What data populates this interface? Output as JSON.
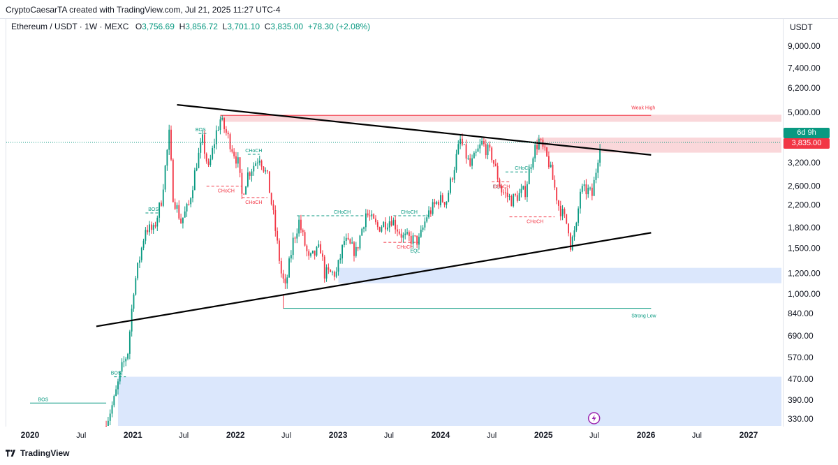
{
  "credit": "CryptoCaesarTA created with TradingView.com, Jul 21, 2025 11:27 UTC-4",
  "legend": {
    "symbol": "Ethereum / USDT · 1W · MEXC",
    "o_label": "O",
    "o": "3,756.69",
    "h_label": "H",
    "h": "3,856.72",
    "l_label": "L",
    "l": "3,701.10",
    "c_label": "C",
    "c": "3,835.00",
    "change": "+78.30 (+2.08%)"
  },
  "currency": "USDT",
  "timer": "6d 9h",
  "current_price": "3,835.00",
  "footer_brand": "TradingView",
  "colors": {
    "up": "#089981",
    "down": "#f23645",
    "supply": "#f9d0d3",
    "demand": "#d5e3fb"
  },
  "chart_data": {
    "type": "candlestick",
    "scale": "log",
    "ylim": [
      300,
      11000
    ],
    "y_ticks": [
      {
        "value": 9000,
        "label": "9,000.00"
      },
      {
        "value": 7400,
        "label": "7,400.00"
      },
      {
        "value": 6200,
        "label": "6,200.00"
      },
      {
        "value": 5000,
        "label": "5,000.00"
      },
      {
        "value": 3200,
        "label": "3,200.00"
      },
      {
        "value": 2600,
        "label": "2,600.00"
      },
      {
        "value": 2200,
        "label": "2,200.00"
      },
      {
        "value": 1800,
        "label": "1,800.00"
      },
      {
        "value": 1500,
        "label": "1,500.00"
      },
      {
        "value": 1200,
        "label": "1,200.00"
      },
      {
        "value": 1000,
        "label": "1,000.00"
      },
      {
        "value": 840,
        "label": "840.00"
      },
      {
        "value": 690,
        "label": "690.00"
      },
      {
        "value": 570,
        "label": "570.00"
      },
      {
        "value": 470,
        "label": "470.00"
      },
      {
        "value": 390,
        "label": "390.00"
      },
      {
        "value": 330,
        "label": "330.00"
      }
    ],
    "x_ticks": [
      {
        "date": "2020-01-01",
        "label": "2020",
        "bold": true
      },
      {
        "date": "2020-07-01",
        "label": "Jul",
        "bold": false
      },
      {
        "date": "2021-01-01",
        "label": "2021",
        "bold": true
      },
      {
        "date": "2021-07-01",
        "label": "Jul",
        "bold": false
      },
      {
        "date": "2022-01-01",
        "label": "2022",
        "bold": true
      },
      {
        "date": "2022-07-01",
        "label": "Jul",
        "bold": false
      },
      {
        "date": "2023-01-01",
        "label": "2023",
        "bold": true
      },
      {
        "date": "2023-07-01",
        "label": "Jul",
        "bold": false
      },
      {
        "date": "2024-01-01",
        "label": "2024",
        "bold": true
      },
      {
        "date": "2024-07-01",
        "label": "Jul",
        "bold": false
      },
      {
        "date": "2025-01-01",
        "label": "2025",
        "bold": true
      },
      {
        "date": "2025-07-01",
        "label": "Jul",
        "bold": false
      },
      {
        "date": "2026-01-01",
        "label": "2026",
        "bold": true
      },
      {
        "date": "2026-07-01",
        "label": "Jul",
        "bold": false
      },
      {
        "date": "2027-01-01",
        "label": "2027",
        "bold": true
      }
    ],
    "price_path": [
      [
        "2020-09-28",
        320
      ],
      [
        "2020-10-26",
        390
      ],
      [
        "2020-11-23",
        520
      ],
      [
        "2020-12-14",
        600
      ],
      [
        "2021-01-04",
        1050
      ],
      [
        "2021-02-15",
        1800
      ],
      [
        "2021-03-15",
        1750
      ],
      [
        "2021-04-12",
        2300
      ],
      [
        "2021-05-10",
        4100
      ],
      [
        "2021-05-24",
        2400
      ],
      [
        "2021-06-21",
        1900
      ],
      [
        "2021-07-19",
        2200
      ],
      [
        "2021-08-16",
        3200
      ],
      [
        "2021-09-06",
        3900
      ],
      [
        "2021-09-27",
        3000
      ],
      [
        "2021-10-25",
        4200
      ],
      [
        "2021-11-08",
        4700
      ],
      [
        "2021-12-06",
        4000
      ],
      [
        "2022-01-10",
        3200
      ],
      [
        "2022-01-24",
        2400
      ],
      [
        "2022-02-14",
        2900
      ],
      [
        "2022-03-28",
        3400
      ],
      [
        "2022-04-25",
        2800
      ],
      [
        "2022-05-16",
        2000
      ],
      [
        "2022-06-13",
        1200
      ],
      [
        "2022-06-27",
        1050
      ],
      [
        "2022-07-25",
        1600
      ],
      [
        "2022-08-15",
        1900
      ],
      [
        "2022-09-19",
        1350
      ],
      [
        "2022-10-31",
        1500
      ],
      [
        "2022-11-14",
        1200
      ],
      [
        "2022-12-26",
        1200
      ],
      [
        "2023-01-23",
        1600
      ],
      [
        "2023-03-06",
        1450
      ],
      [
        "2023-04-10",
        2050
      ],
      [
        "2023-05-22",
        1800
      ],
      [
        "2023-07-10",
        1950
      ],
      [
        "2023-08-21",
        1650
      ],
      [
        "2023-10-16",
        1600
      ],
      [
        "2023-11-13",
        2000
      ],
      [
        "2023-12-25",
        2300
      ],
      [
        "2024-01-22",
        2300
      ],
      [
        "2024-03-11",
        3900
      ],
      [
        "2024-04-15",
        3100
      ],
      [
        "2024-05-27",
        3800
      ],
      [
        "2024-07-01",
        3400
      ],
      [
        "2024-08-05",
        2500
      ],
      [
        "2024-09-09",
        2300
      ],
      [
        "2024-10-28",
        2500
      ],
      [
        "2024-11-25",
        3500
      ],
      [
        "2024-12-16",
        3900
      ],
      [
        "2025-01-20",
        3200
      ],
      [
        "2025-02-24",
        2200
      ],
      [
        "2025-03-31",
        1800
      ],
      [
        "2025-04-07",
        1550
      ],
      [
        "2025-04-28",
        1800
      ],
      [
        "2025-05-12",
        2500
      ],
      [
        "2025-06-09",
        2500
      ],
      [
        "2025-06-23",
        2400
      ],
      [
        "2025-07-07",
        3000
      ],
      [
        "2025-07-21",
        3835
      ]
    ],
    "zones": [
      {
        "name": "supply-zone-upper",
        "x0": "2021-11-08",
        "x1": "2027-06-01",
        "y0": 4600,
        "y1": 4900,
        "kind": "supply"
      },
      {
        "name": "supply-zone-lower",
        "x0": "2024-12-09",
        "x1": "2027-06-01",
        "y0": 3500,
        "y1": 4000,
        "kind": "supply"
      },
      {
        "name": "demand-zone-upper",
        "x0": "2023-01-02",
        "x1": "2027-06-01",
        "y0": 1100,
        "y1": 1260,
        "kind": "demand"
      },
      {
        "name": "demand-zone-lower",
        "x0": "2020-11-09",
        "x1": "2027-06-01",
        "y0": 300,
        "y1": 480,
        "kind": "demand"
      }
    ],
    "trendlines": [
      {
        "name": "descending-trendline",
        "x0": "2021-06-07",
        "y0": 5350,
        "x1": "2026-01-19",
        "y1": 3430
      },
      {
        "name": "ascending-trendline",
        "x0": "2020-08-24",
        "y0": 750,
        "x1": "2026-01-19",
        "y1": 1720
      }
    ],
    "levels": [
      {
        "name": "weak-high-line",
        "x0": "2021-11-08",
        "x1": "2026-01-19",
        "y": 4870,
        "color": "#f23645",
        "label": "Weak High",
        "label_date": "2025-11-10",
        "label_dy": -9
      },
      {
        "name": "strong-low-line",
        "x0": "2022-06-20",
        "x1": "2026-01-19",
        "y": 880,
        "color": "#089981",
        "label": "Strong Low",
        "label_date": "2025-11-10",
        "label_dy": 13
      },
      {
        "name": "strong-low-stem",
        "x0": "2022-06-20",
        "x1": "2022-06-20",
        "y": 880,
        "y_top": 1000,
        "color": "#f23645"
      }
    ],
    "structure_labels": [
      {
        "text": "BOS",
        "date": "2020-02-17",
        "y": 380,
        "color": "#089981",
        "line_x0": "2020-01-01",
        "line_x1": "2020-09-28",
        "dashed": false
      },
      {
        "text": "BOS",
        "date": "2020-11-02",
        "y": 480,
        "color": "#089981",
        "line_x0": "2020-10-26",
        "line_x1": "2020-12-07",
        "dashed": true
      },
      {
        "text": "BOS",
        "date": "2021-03-15",
        "y": 2050,
        "color": "#089981",
        "line_x0": "2021-02-15",
        "line_x1": "2021-04-05",
        "dashed": true
      },
      {
        "text": "BOS",
        "date": "2021-08-30",
        "y": 4150,
        "color": "#089981",
        "line_x0": "2021-08-23",
        "line_x1": "2021-09-20",
        "dashed": true
      },
      {
        "text": "CHoCH",
        "date": "2021-11-29",
        "y": 2600,
        "color": "#f23645",
        "line_x0": "2021-09-20",
        "line_x1": "2022-01-24",
        "dashed": true
      },
      {
        "text": "CHoCH",
        "date": "2022-03-07",
        "y": 3450,
        "color": "#089981",
        "line_x0": "2022-02-14",
        "line_x1": "2022-03-28",
        "dashed": true
      },
      {
        "text": "CHoCH",
        "date": "2022-03-07",
        "y": 2350,
        "color": "#f23645",
        "line_x0": "2022-01-24",
        "line_x1": "2022-04-25",
        "dashed": true
      },
      {
        "text": "CHoCH",
        "date": "2023-01-16",
        "y": 2000,
        "color": "#089981",
        "line_x0": "2022-08-08",
        "line_x1": "2023-04-03",
        "dashed": true
      },
      {
        "text": "CHoCH",
        "date": "2023-09-11",
        "y": 2000,
        "color": "#089981",
        "line_x0": "2023-07-17",
        "line_x1": "2023-11-20",
        "dashed": true
      },
      {
        "text": "CHoCH",
        "date": "2023-08-28",
        "y": 1580,
        "color": "#f23645",
        "line_x0": "2023-06-12",
        "line_x1": "2023-10-16",
        "dashed": true
      },
      {
        "text": "EQL",
        "date": "2023-10-02",
        "y": 1420,
        "color": "#089981",
        "line_x0": "",
        "line_x1": "",
        "dashed": false
      },
      {
        "text": "EQL",
        "date": "2024-07-22",
        "y": 2700,
        "color": "#787b86",
        "line_x0": "",
        "line_x1": "",
        "dashed": false
      },
      {
        "text": "CHoCH",
        "date": "2024-08-05",
        "y": 2700,
        "color": "#f23645",
        "line_x0": "2024-07-01",
        "line_x1": "2024-09-02",
        "dashed": true
      },
      {
        "text": "CHoCH",
        "date": "2024-10-21",
        "y": 2950,
        "color": "#089981",
        "line_x0": "2024-08-19",
        "line_x1": "2024-11-04",
        "dashed": true
      },
      {
        "text": "CHoCH",
        "date": "2024-12-02",
        "y": 1980,
        "color": "#f23645",
        "line_x0": "2024-09-02",
        "line_x1": "2025-02-10",
        "dashed": true
      }
    ]
  }
}
